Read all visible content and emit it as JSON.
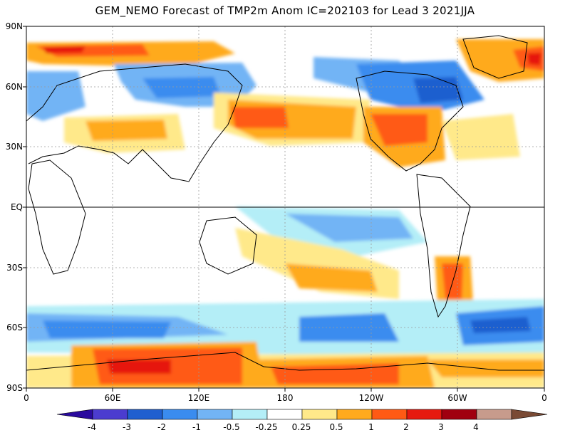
{
  "title": "GEM_NEMO Forecast of TMP2m Anom IC=202103 for Lead 3 2021JJA",
  "lat_labels": [
    "90N",
    "60N",
    "30N",
    "EQ",
    "30S",
    "60S",
    "90S"
  ],
  "lon_labels": [
    "0",
    "60E",
    "120E",
    "180",
    "120W",
    "60W",
    "0"
  ],
  "colorbar": {
    "labels": [
      "-4",
      "-3",
      "-2",
      "-1",
      "-0.5",
      "-0.25",
      "0.25",
      "0.5",
      "1",
      "2",
      "3",
      "4"
    ],
    "colors": [
      "#2a0a9e",
      "#4b3ccf",
      "#1f5fcf",
      "#3a8cef",
      "#72b4f5",
      "#b4eef7",
      "#ffffff",
      "#ffe98a",
      "#ffaa1e",
      "#ff5a14",
      "#e6190f",
      "#a0000f",
      "#c79b8c",
      "#7a4a34"
    ]
  },
  "map": {
    "ocean": "#ffffff",
    "outline": "#000000",
    "grid": "#9a9a9a"
  }
}
